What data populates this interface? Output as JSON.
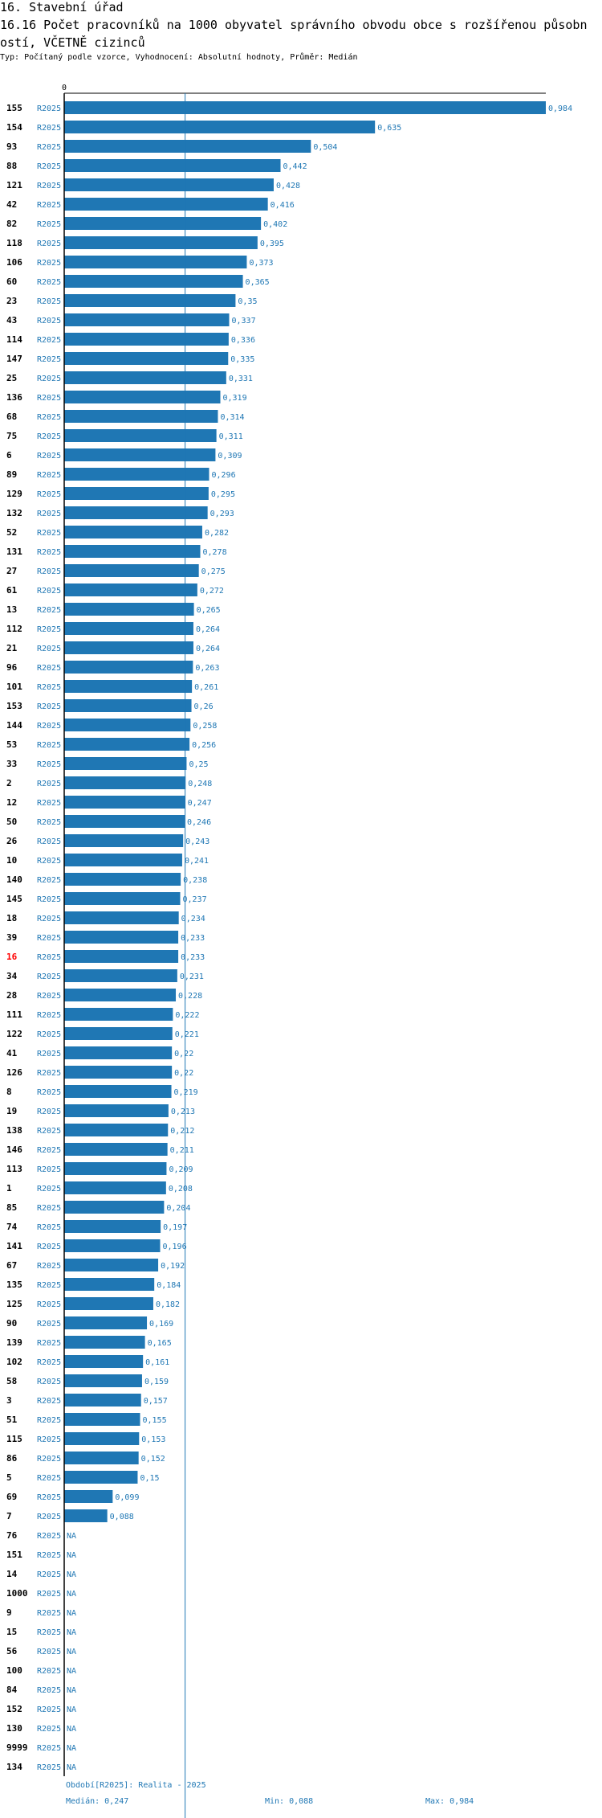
{
  "header": {
    "section": "16. Stavební úřad",
    "title_line1": "16.16 Počet pracovníků na 1000 obyvatel správního obvodu obce s rozšířenou působn",
    "title_line2": "ostí, VČETNĚ cizinců",
    "subtitle": "Typ: Počítaný podle vzorce, Vyhodnocení: Absolutní hodnoty, Průměr: Medián"
  },
  "footer": {
    "period": "Období[R2025]: Realita - 2025",
    "median": "Medián: 0,247",
    "min": "Min: 0,088",
    "max": "Max: 0,984"
  },
  "colors": {
    "bar": "#1f77b4",
    "highlight": "#ff0000",
    "label": "#000000",
    "median_line": "#1f77b4"
  },
  "chart_data": {
    "type": "bar",
    "orientation": "horizontal",
    "title": "16.16 Počet pracovníků na 1000 obyvatel správního obvodu obce s rozšířenou působností, VČETNĚ cizinců",
    "xlabel": "",
    "ylabel": "",
    "axis_tick_label": "0",
    "xlim": [
      0,
      0.984
    ],
    "median": 0.247,
    "series_label": "R2025",
    "na_label": "NA",
    "highlight_category": "16",
    "categories": [
      "155",
      "154",
      "93",
      "88",
      "121",
      "42",
      "82",
      "118",
      "106",
      "60",
      "23",
      "43",
      "114",
      "147",
      "25",
      "136",
      "68",
      "75",
      "6",
      "89",
      "129",
      "132",
      "52",
      "131",
      "27",
      "61",
      "13",
      "112",
      "21",
      "96",
      "101",
      "153",
      "144",
      "53",
      "33",
      "2",
      "12",
      "50",
      "26",
      "10",
      "140",
      "145",
      "18",
      "39",
      "16",
      "34",
      "28",
      "111",
      "122",
      "41",
      "126",
      "8",
      "19",
      "138",
      "146",
      "113",
      "1",
      "85",
      "74",
      "141",
      "67",
      "135",
      "125",
      "90",
      "139",
      "102",
      "58",
      "3",
      "51",
      "115",
      "86",
      "5",
      "69",
      "7",
      "76",
      "151",
      "14",
      "1000",
      "9",
      "15",
      "56",
      "100",
      "84",
      "152",
      "130",
      "9999",
      "134"
    ],
    "values": [
      0.984,
      0.635,
      0.504,
      0.442,
      0.428,
      0.416,
      0.402,
      0.395,
      0.373,
      0.365,
      0.35,
      0.337,
      0.336,
      0.335,
      0.331,
      0.319,
      0.314,
      0.311,
      0.309,
      0.296,
      0.295,
      0.293,
      0.282,
      0.278,
      0.275,
      0.272,
      0.265,
      0.264,
      0.264,
      0.263,
      0.261,
      0.26,
      0.258,
      0.256,
      0.25,
      0.248,
      0.247,
      0.246,
      0.243,
      0.241,
      0.238,
      0.237,
      0.234,
      0.233,
      0.233,
      0.231,
      0.228,
      0.222,
      0.221,
      0.22,
      0.22,
      0.219,
      0.213,
      0.212,
      0.211,
      0.209,
      0.208,
      0.204,
      0.197,
      0.196,
      0.192,
      0.184,
      0.182,
      0.169,
      0.165,
      0.161,
      0.159,
      0.157,
      0.155,
      0.153,
      0.152,
      0.15,
      0.099,
      0.088,
      null,
      null,
      null,
      null,
      null,
      null,
      null,
      null,
      null,
      null,
      null,
      null,
      null
    ],
    "value_labels": [
      "0,984",
      "0,635",
      "0,504",
      "0,442",
      "0,428",
      "0,416",
      "0,402",
      "0,395",
      "0,373",
      "0,365",
      "0,35",
      "0,337",
      "0,336",
      "0,335",
      "0,331",
      "0,319",
      "0,314",
      "0,311",
      "0,309",
      "0,296",
      "0,295",
      "0,293",
      "0,282",
      "0,278",
      "0,275",
      "0,272",
      "0,265",
      "0,264",
      "0,264",
      "0,263",
      "0,261",
      "0,26",
      "0,258",
      "0,256",
      "0,25",
      "0,248",
      "0,247",
      "0,246",
      "0,243",
      "0,241",
      "0,238",
      "0,237",
      "0,234",
      "0,233",
      "0,233",
      "0,231",
      "0,228",
      "0,222",
      "0,221",
      "0,22",
      "0,22",
      "0,219",
      "0,213",
      "0,212",
      "0,211",
      "0,209",
      "0,208",
      "0,204",
      "0,197",
      "0,196",
      "0,192",
      "0,184",
      "0,182",
      "0,169",
      "0,165",
      "0,161",
      "0,159",
      "0,157",
      "0,155",
      "0,153",
      "0,152",
      "0,15",
      "0,099",
      "0,088",
      "NA",
      "NA",
      "NA",
      "NA",
      "NA",
      "NA",
      "NA",
      "NA",
      "NA",
      "NA",
      "NA",
      "NA",
      "NA"
    ]
  }
}
